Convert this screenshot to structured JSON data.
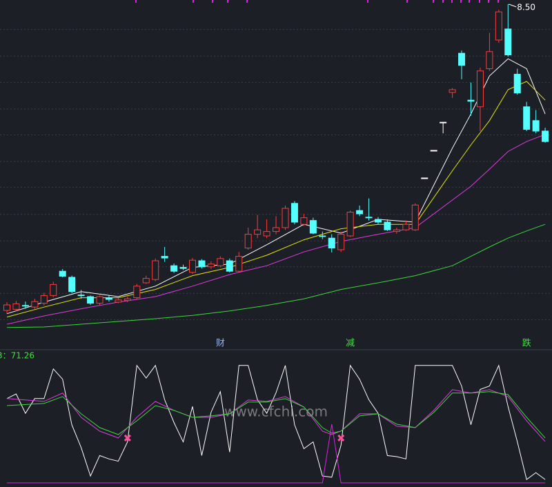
{
  "chart_data": [
    {
      "type": "candlestick",
      "ylim": [
        2.45,
        8.575
      ],
      "ygrid": [
        8.04,
        7.56,
        7.08,
        6.6,
        6.13,
        5.65,
        5.18,
        4.69,
        4.21,
        3.74,
        3.26,
        2.78
      ],
      "up_color": "#ff3b3b",
      "down_color": "#54ffff",
      "open": [
        2.95,
        2.97,
        3.04,
        3.01,
        3.08,
        3.22,
        3.66,
        3.55,
        3.23,
        3.2,
        3.08,
        3.18,
        3.1,
        3.13,
        3.18,
        3.45,
        3.51,
        3.93,
        3.76,
        3.73,
        3.64,
        3.85,
        3.74,
        3.76,
        3.85,
        3.66,
        4.08,
        4.33,
        4.3,
        4.38,
        4.45,
        4.89,
        4.51,
        4.58,
        4.3,
        4.26,
        4.05,
        4.3,
        4.76,
        4.64,
        4.6,
        4.55,
        4.38,
        4.41,
        4.41,
        5.35,
        5.85,
        6.36,
        6.9,
        7.61,
        6.76,
        6.64,
        7.33,
        7.85,
        8.05,
        7.23,
        6.64,
        6.39,
        6.2
      ],
      "high": [
        3.1,
        3.12,
        3.11,
        3.16,
        3.27,
        3.47,
        3.7,
        3.58,
        3.32,
        3.22,
        3.22,
        3.22,
        3.18,
        3.2,
        3.43,
        3.58,
        3.89,
        4.1,
        3.8,
        3.78,
        3.9,
        3.88,
        3.84,
        3.93,
        3.89,
        4.01,
        4.45,
        4.68,
        4.6,
        4.66,
        4.85,
        4.93,
        4.7,
        4.63,
        4.38,
        4.33,
        4.38,
        4.76,
        4.85,
        4.98,
        4.64,
        4.6,
        4.45,
        4.58,
        4.89,
        5.35,
        5.85,
        6.36,
        6.98,
        7.66,
        7.08,
        7.35,
        7.98,
        8.4,
        8.5,
        7.33,
        6.73,
        6.58,
        6.26
      ],
      "low": [
        2.89,
        2.93,
        2.98,
        2.98,
        3.04,
        3.19,
        3.55,
        3.26,
        3.16,
        3.05,
        3.05,
        3.11,
        3.08,
        3.1,
        3.15,
        3.43,
        3.48,
        3.83,
        3.63,
        3.68,
        3.61,
        3.71,
        3.7,
        3.73,
        3.64,
        3.64,
        4.05,
        4.26,
        4.26,
        4.33,
        4.41,
        4.51,
        4.48,
        4.33,
        4.24,
        4.0,
        4.01,
        4.28,
        4.66,
        4.58,
        4.51,
        4.39,
        4.34,
        4.39,
        4.39,
        5.35,
        5.85,
        6.16,
        6.8,
        7.14,
        6.48,
        6.2,
        7.29,
        7.8,
        7.55,
        6.86,
        6.2,
        6.16,
        5.99
      ],
      "close": [
        3.05,
        3.07,
        3.03,
        3.11,
        3.22,
        3.42,
        3.57,
        3.29,
        3.22,
        3.08,
        3.2,
        3.15,
        3.14,
        3.16,
        3.39,
        3.53,
        3.85,
        3.9,
        3.66,
        3.71,
        3.86,
        3.74,
        3.79,
        3.89,
        3.66,
        3.93,
        4.33,
        4.41,
        4.38,
        4.45,
        4.8,
        4.55,
        4.63,
        4.35,
        4.29,
        4.08,
        4.33,
        4.73,
        4.7,
        4.63,
        4.55,
        4.41,
        4.41,
        4.51,
        4.86,
        5.35,
        5.85,
        6.36,
        6.95,
        7.39,
        6.74,
        7.29,
        7.64,
        8.36,
        7.58,
        6.89,
        6.23,
        6.2,
        6.01
      ],
      "lines": [
        {
          "color": "#ffffff",
          "x": [
            0,
            4,
            8,
            12,
            16,
            20,
            24,
            28,
            32,
            36,
            40,
            44,
            48,
            50,
            52,
            54,
            56,
            58
          ],
          "values": [
            2.89,
            3.1,
            3.29,
            3.2,
            3.39,
            3.73,
            3.79,
            4.14,
            4.51,
            4.35,
            4.6,
            4.55,
            5.89,
            6.51,
            7.2,
            7.51,
            7.33,
            6.51
          ]
        },
        {
          "color": "#e6e600",
          "x": [
            0,
            4,
            8,
            12,
            16,
            20,
            24,
            28,
            32,
            36,
            40,
            44,
            48,
            50,
            52,
            54,
            56,
            58
          ],
          "values": [
            2.83,
            3.01,
            3.18,
            3.18,
            3.33,
            3.58,
            3.73,
            3.95,
            4.23,
            4.43,
            4.51,
            4.51,
            5.48,
            5.95,
            6.39,
            6.95,
            7.1,
            6.76
          ]
        },
        {
          "color": "#e03ce0",
          "x": [
            0,
            4,
            8,
            12,
            16,
            20,
            24,
            28,
            32,
            36,
            40,
            44,
            48,
            50,
            52,
            54,
            56,
            58
          ],
          "values": [
            2.7,
            2.85,
            2.98,
            3.1,
            3.2,
            3.39,
            3.6,
            3.76,
            4.01,
            4.2,
            4.33,
            4.45,
            4.95,
            5.2,
            5.51,
            5.83,
            6.01,
            6.14
          ]
        },
        {
          "color": "#3ed83e",
          "x": [
            0,
            4,
            8,
            12,
            16,
            20,
            24,
            28,
            32,
            36,
            40,
            44,
            48,
            50,
            52,
            54,
            56,
            58
          ],
          "values": [
            2.64,
            2.65,
            2.7,
            2.75,
            2.8,
            2.86,
            2.94,
            3.04,
            3.16,
            3.33,
            3.45,
            3.58,
            3.76,
            3.93,
            4.1,
            4.26,
            4.39,
            4.51
          ]
        }
      ],
      "high_label": {
        "text": "8.50",
        "x": 54,
        "y": 8.5
      },
      "annotations": [
        {
          "text": "财",
          "x": 23,
          "color": "#8fb4ff"
        },
        {
          "text": "减",
          "x": 37,
          "color": "#3fe03f"
        },
        {
          "text": "跌",
          "x": 56,
          "color": "#3fe03f"
        }
      ]
    },
    {
      "type": "line",
      "ylim": [
        -6,
        112
      ],
      "label": "3：71.26",
      "label_color": "#3fe03f",
      "watermark": "www.cfchi.com",
      "series": [
        {
          "color": "#ffffff",
          "x": [
            0,
            1,
            2,
            3,
            4,
            5,
            6,
            7,
            8,
            9,
            10,
            11,
            12,
            13,
            14,
            15,
            16,
            17,
            18,
            19,
            20,
            21,
            22,
            23,
            24,
            25,
            26,
            27,
            28,
            29,
            30,
            31,
            32,
            33,
            34,
            35,
            36,
            37,
            38,
            39,
            40,
            41,
            42,
            43,
            44,
            45,
            46,
            47,
            48,
            49,
            50,
            51,
            52,
            53,
            54,
            55,
            56,
            57,
            58
          ],
          "values": [
            71,
            75,
            58,
            71,
            71,
            97,
            88,
            48,
            28,
            3,
            21,
            18,
            16,
            33,
            100,
            89,
            100,
            70,
            50,
            33,
            64,
            21,
            59,
            77,
            24,
            100,
            100,
            70,
            58,
            76,
            100,
            48,
            27,
            33,
            3,
            2,
            30,
            100,
            88,
            70,
            58,
            21,
            20,
            18,
            100,
            100,
            100,
            100,
            100,
            82,
            48,
            79,
            82,
            100,
            64,
            33,
            0,
            6,
            0
          ]
        },
        {
          "color": "#e03ce0",
          "x": [
            0,
            4,
            6,
            8,
            10,
            12,
            14,
            16,
            18,
            20,
            22,
            24,
            26,
            28,
            30,
            32,
            34,
            35,
            36,
            38,
            40,
            42,
            44,
            46,
            48,
            50,
            52,
            54,
            56,
            58
          ],
          "values": [
            71,
            68.5,
            75.8,
            54.5,
            42.4,
            36.4,
            54.5,
            68.5,
            60.6,
            54.5,
            54.5,
            57.6,
            69.7,
            68.5,
            72.7,
            63.6,
            42.4,
            39.4,
            42.4,
            57.6,
            57.6,
            46.7,
            45.5,
            60.6,
            78.8,
            75.8,
            78.8,
            72.7,
            51.5,
            33.3
          ]
        },
        {
          "color": "#3ed83e",
          "x": [
            0,
            4,
            6,
            8,
            10,
            12,
            14,
            16,
            18,
            20,
            22,
            24,
            26,
            28,
            30,
            32,
            34,
            35,
            36,
            38,
            40,
            42,
            44,
            46,
            48,
            50,
            52,
            54,
            56,
            58
          ],
          "values": [
            64.8,
            66.7,
            72.7,
            57.6,
            45.5,
            39.4,
            51.5,
            64.8,
            60.6,
            54.5,
            55.8,
            57.6,
            67.9,
            67.9,
            70.9,
            63.6,
            45.5,
            40.6,
            42.4,
            55.8,
            57.6,
            48.5,
            45.5,
            58.8,
            75.8,
            75.8,
            77,
            74.5,
            54.5,
            36.4
          ]
        },
        {
          "color": "#e020e0",
          "x": [
            0,
            34,
            35,
            36,
            58
          ],
          "values": [
            -3,
            -3,
            48.5,
            -3,
            -3
          ]
        }
      ],
      "markers": [
        {
          "x": 13,
          "value": 36.4,
          "color": "#ff4f9a"
        },
        {
          "x": 36,
          "value": 36.4,
          "color": "#ff4f9a"
        }
      ]
    }
  ]
}
